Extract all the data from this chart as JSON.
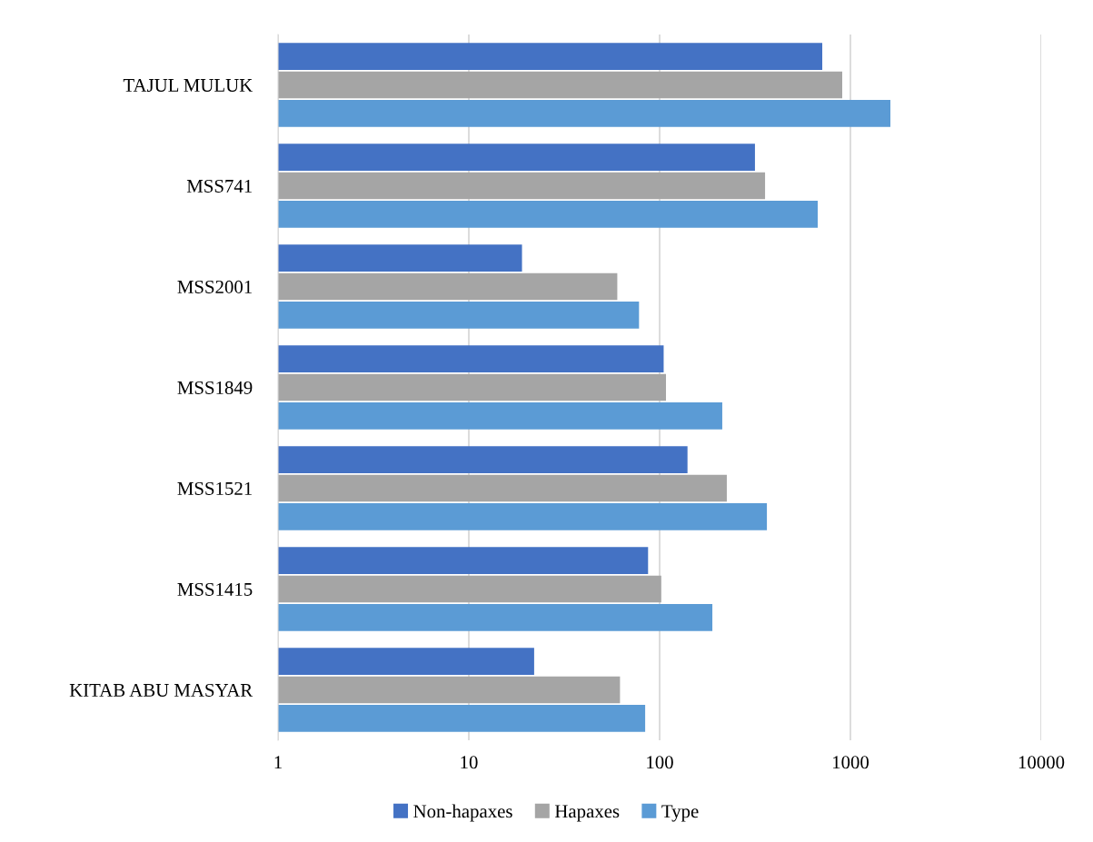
{
  "chart_data": {
    "type": "bar",
    "orientation": "horizontal",
    "log": "x",
    "categories": [
      "TAJUL MULUK",
      "MSS741",
      "MSS2001",
      "MSS1849",
      "MSS1521",
      "MSS1415",
      "KITAB ABU MASYAR"
    ],
    "series": [
      {
        "name": "Non-hapaxes",
        "color": "#4472c4",
        "values": [
          712,
          316,
          19,
          105,
          140,
          87,
          22
        ]
      },
      {
        "name": "Hapaxes",
        "color": "#a5a5a5",
        "values": [
          906,
          357,
          60,
          108,
          225,
          102,
          62
        ]
      },
      {
        "name": "Type",
        "color": "#5b9bd5",
        "values": [
          1620,
          674,
          78,
          213,
          365,
          189,
          84
        ]
      }
    ],
    "xlim": [
      1,
      10000
    ],
    "xticks": [
      1,
      10,
      100,
      1000,
      10000
    ],
    "grid": "x",
    "legend": "bottom"
  }
}
